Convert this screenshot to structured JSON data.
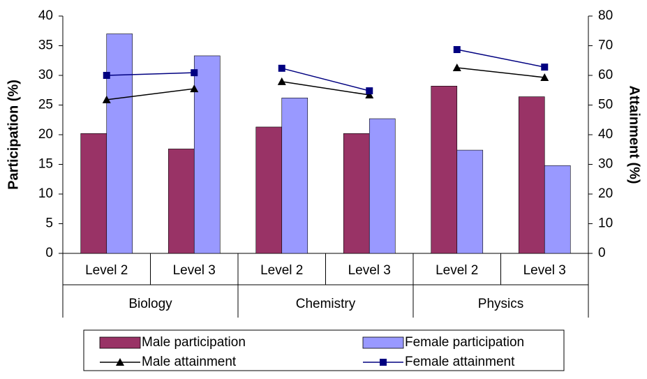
{
  "chart_data": {
    "type": "bar",
    "categories": [
      "Level 2",
      "Level 3",
      "Level 2",
      "Level 3",
      "Level 2",
      "Level 3"
    ],
    "category_groups": [
      "Biology",
      "Chemistry",
      "Physics"
    ],
    "ylabel": "Participation (%)",
    "y2label": "Attainment (%)",
    "ylim": [
      0,
      40
    ],
    "yticks": [
      0,
      5,
      10,
      15,
      20,
      25,
      30,
      35,
      40
    ],
    "y2lim": [
      0,
      80
    ],
    "y2ticks": [
      0,
      10,
      20,
      30,
      40,
      50,
      60,
      70,
      80
    ],
    "legend": "bottom",
    "series": [
      {
        "name": "Male participation",
        "type": "bar",
        "color": "#993366",
        "values": [
          20.2,
          17.6,
          21.3,
          20.2,
          28.2,
          26.4
        ]
      },
      {
        "name": "Female participation",
        "type": "bar",
        "color": "#9999ff",
        "values": [
          37.0,
          33.3,
          26.2,
          22.7,
          17.4,
          14.8
        ]
      },
      {
        "name": "Male attainment",
        "type": "line",
        "axis": "y2",
        "marker": "triangle",
        "color": "#000000",
        "values": [
          51.8,
          55.5,
          57.9,
          53.4,
          62.6,
          59.3
        ]
      },
      {
        "name": "Female attainment",
        "type": "line",
        "axis": "y2",
        "marker": "square",
        "color": "#000080",
        "values": [
          60.0,
          60.9,
          62.4,
          54.8,
          68.7,
          62.8
        ]
      }
    ]
  }
}
